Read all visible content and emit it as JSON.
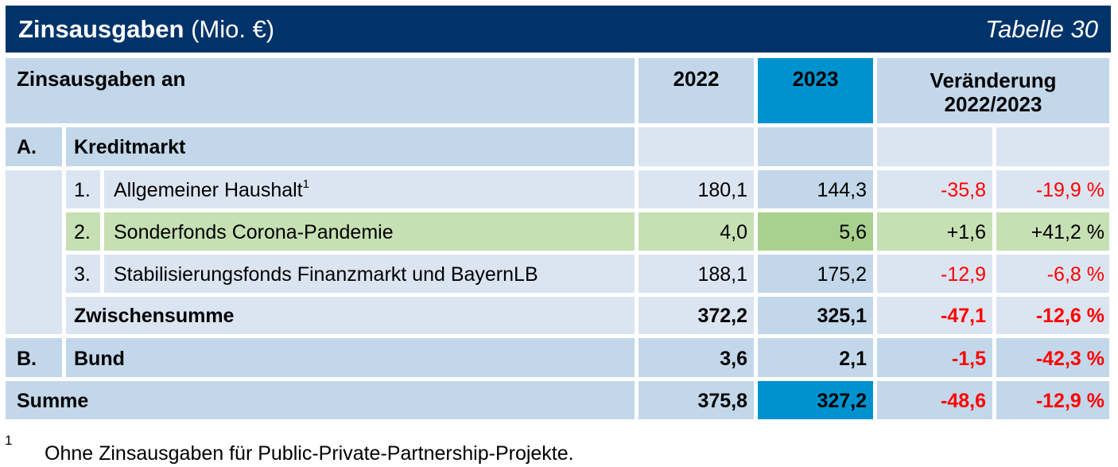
{
  "title": {
    "main": "Zinsausgaben",
    "unit": "(Mio. €)",
    "number": "Tabelle 30"
  },
  "header": {
    "label": "Zinsausgaben an",
    "y2022": "2022",
    "y2023": "2023",
    "change": "Veränderung",
    "change_period": "2022/2023"
  },
  "sections": {
    "a": {
      "letter": "A.",
      "label": "Kreditmarkt"
    },
    "b": {
      "letter": "B.",
      "label": "Bund",
      "v2022": "3,6",
      "v2023": "2,1",
      "abs": "-1,5",
      "pct": "-42,3 %"
    }
  },
  "rows": [
    {
      "num": "1.",
      "label": "Allgemeiner Haushalt",
      "sup": "1",
      "v2022": "180,1",
      "v2023": "144,3",
      "abs": "-35,8",
      "pct": "-19,9 %"
    },
    {
      "num": "2.",
      "label": "Sonderfonds Corona-Pandemie",
      "sup": "",
      "v2022": "4,0",
      "v2023": "5,6",
      "abs": "+1,6",
      "pct": "+41,2 %"
    },
    {
      "num": "3.",
      "label": "Stabilisierungsfonds Finanzmarkt und BayernLB",
      "sup": "",
      "v2022": "188,1",
      "v2023": "175,2",
      "abs": "-12,9",
      "pct": "-6,8 %"
    }
  ],
  "subtotal": {
    "label": "Zwischensumme",
    "v2022": "372,2",
    "v2023": "325,1",
    "abs": "-47,1",
    "pct": "-12,6 %"
  },
  "total": {
    "label": "Summe",
    "v2022": "375,8",
    "v2023": "327,2",
    "abs": "-48,6",
    "pct": "-12,9 %"
  },
  "footnote": {
    "num": "1",
    "text": "Ohne Zinsausgaben für Public-Private-Partnership-Projekte."
  },
  "colors": {
    "title_bg": "#00336a",
    "header_bg": "#c3d7ea",
    "row_bg": "#dbe5f1",
    "highlight_2023": "#0092cf",
    "green_row": "#c6e0b4",
    "green_2023": "#a9d08e",
    "negative": "#ff0000"
  }
}
